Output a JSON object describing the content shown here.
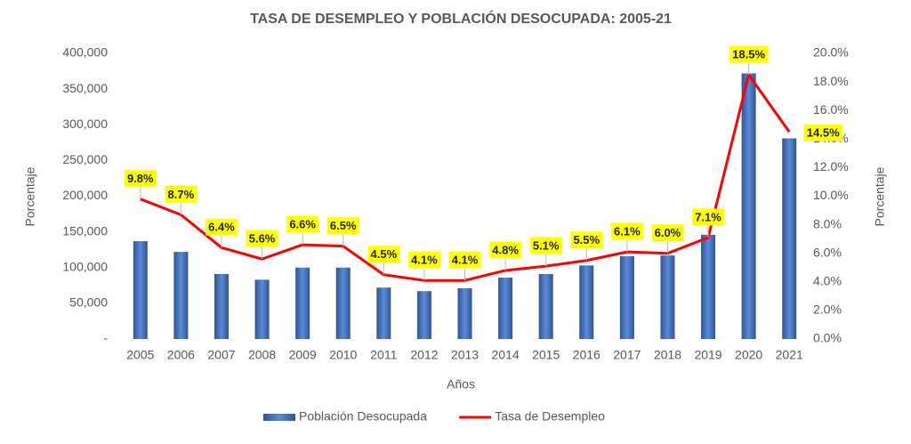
{
  "chart_data": {
    "type": "bar",
    "title": "TASA DE DESEMPLEO Y POBLACIÓN DESOCUPADA: 2005-21",
    "x_label": "Años",
    "y_label": "Porcentaje",
    "y2_label": "Porcentaje",
    "categories": [
      "2005",
      "2006",
      "2007",
      "2008",
      "2009",
      "2010",
      "2011",
      "2012",
      "2013",
      "2014",
      "2015",
      "2016",
      "2017",
      "2018",
      "2019",
      "2020",
      "2021"
    ],
    "series": [
      {
        "name": "Población Desocupada",
        "type": "bar",
        "color": "#4472c4",
        "values": [
          137000,
          122000,
          91000,
          83000,
          100000,
          100000,
          72000,
          67000,
          71000,
          86000,
          91000,
          103000,
          116000,
          117000,
          146000,
          372000,
          281000
        ]
      },
      {
        "name": "Tasa de Desempleo",
        "type": "line",
        "axis": "y2",
        "color": "#ff0000",
        "values": [
          9.8,
          8.7,
          6.4,
          5.6,
          6.6,
          6.5,
          4.5,
          4.1,
          4.1,
          4.8,
          5.1,
          5.5,
          6.1,
          6.0,
          7.1,
          18.5,
          14.5
        ],
        "value_labels": [
          "9.8%",
          "8.7%",
          "6.4%",
          "5.6%",
          "6.6%",
          "6.5%",
          "4.5%",
          "4.1%",
          "4.1%",
          "4.8%",
          "5.1%",
          "5.5%",
          "6.1%",
          "6.0%",
          "7.1%",
          "18.5%",
          "14.5%"
        ],
        "label_color": "#ffff00"
      }
    ],
    "ylim": [
      0,
      400000
    ],
    "yticks": [
      {
        "value": 0,
        "label": "-"
      },
      {
        "value": 50000,
        "label": "50,000"
      },
      {
        "value": 100000,
        "label": "100,000"
      },
      {
        "value": 150000,
        "label": "150,000"
      },
      {
        "value": 200000,
        "label": "200,000"
      },
      {
        "value": 250000,
        "label": "250,000"
      },
      {
        "value": 300000,
        "label": "300,000"
      },
      {
        "value": 350000,
        "label": "350,000"
      },
      {
        "value": 400000,
        "label": "400,000"
      }
    ],
    "y2lim": [
      0,
      20
    ],
    "y2ticks": [
      {
        "value": 0,
        "label": "0.0%"
      },
      {
        "value": 2,
        "label": "2.0%"
      },
      {
        "value": 4,
        "label": "4.0%"
      },
      {
        "value": 6,
        "label": "6.0%"
      },
      {
        "value": 8,
        "label": "8.0%"
      },
      {
        "value": 10,
        "label": "10.0%"
      },
      {
        "value": 12,
        "label": "12.0%"
      },
      {
        "value": 14,
        "label": "14.0%"
      },
      {
        "value": 16,
        "label": "16.0%"
      },
      {
        "value": 18,
        "label": "18.0%"
      },
      {
        "value": 20,
        "label": "20.0%"
      }
    ],
    "grid": false
  }
}
